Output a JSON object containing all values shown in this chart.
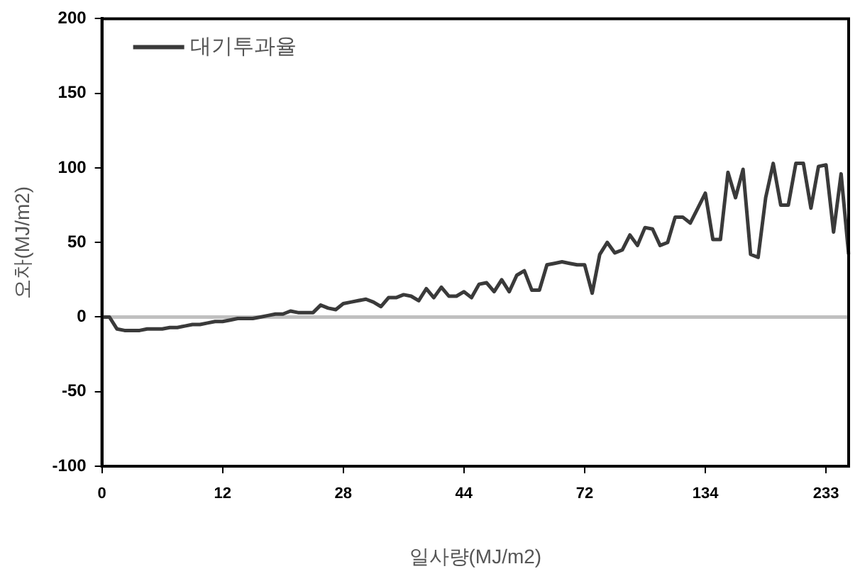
{
  "chart_data": {
    "type": "line",
    "xlabel": "일사량(MJ/m2)",
    "ylabel": "오차(MJ/m2)",
    "categories": [
      "0",
      null,
      null,
      null,
      null,
      null,
      null,
      null,
      null,
      null,
      null,
      null,
      null,
      null,
      null,
      null,
      "12",
      null,
      null,
      null,
      null,
      null,
      null,
      null,
      null,
      null,
      null,
      null,
      null,
      null,
      null,
      null,
      "28",
      null,
      null,
      null,
      null,
      null,
      null,
      null,
      null,
      null,
      null,
      null,
      null,
      null,
      null,
      null,
      "44",
      null,
      null,
      null,
      null,
      null,
      null,
      null,
      null,
      null,
      null,
      null,
      null,
      null,
      null,
      null,
      "72",
      null,
      null,
      null,
      null,
      null,
      null,
      null,
      null,
      null,
      null,
      null,
      null,
      null,
      null,
      null,
      "134",
      null,
      null,
      null,
      null,
      null,
      null,
      null,
      null,
      null,
      null,
      null,
      null,
      null,
      null,
      null,
      "233",
      null,
      null,
      null
    ],
    "series": [
      {
        "name": "대기투과율",
        "color": "#3a3a3a",
        "values": [
          0,
          0,
          -8,
          -9,
          -9,
          -9,
          -8,
          -8,
          -8,
          -7,
          -7,
          -6,
          -5,
          -5,
          -4,
          -3,
          -3,
          -2,
          -1,
          -1,
          -1,
          0,
          1,
          2,
          2,
          4,
          3,
          3,
          3,
          8,
          6,
          5,
          9,
          10,
          11,
          12,
          10,
          7,
          13,
          13,
          15,
          14,
          11,
          19,
          13,
          20,
          14,
          14,
          17,
          13,
          22,
          23,
          17,
          25,
          17,
          28,
          31,
          18,
          18,
          35,
          36,
          37,
          36,
          35,
          35,
          16,
          42,
          50,
          43,
          45,
          55,
          48,
          60,
          59,
          48,
          50,
          67,
          67,
          63,
          73,
          83,
          52,
          52,
          97,
          80,
          99,
          42,
          40,
          80,
          103,
          75,
          75,
          103,
          103,
          73,
          101,
          102,
          57,
          96,
          42
        ]
      }
    ],
    "ylim": [
      -100,
      200
    ],
    "yticks": [
      -100,
      -50,
      0,
      50,
      100,
      150,
      200
    ],
    "ref_lines": [
      {
        "axis": "y",
        "value": 0,
        "color": "#c0c0c0"
      }
    ],
    "grid": false,
    "legend": "top left",
    "marker": "none",
    "line_style": "solid"
  }
}
